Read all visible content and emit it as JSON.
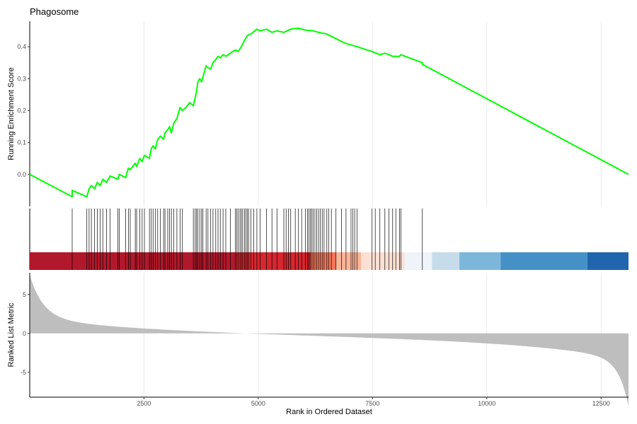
{
  "chart_data": {
    "type": "line",
    "title": "Phagosome",
    "xlabel": "Rank in Ordered Dataset",
    "xlim": [
      1,
      13100
    ],
    "x_ticks": [
      2500,
      5000,
      7500,
      10000,
      12500
    ],
    "x_tick_labels": [
      "2500",
      "5000",
      "7500",
      "10000",
      "12500"
    ],
    "grid": "vertical",
    "enrichment": {
      "ylabel": "Running Enrichment Score",
      "ylim": [
        -0.1,
        0.48
      ],
      "y_ticks": [
        0.0,
        0.1,
        0.2,
        0.3,
        0.4
      ],
      "y_tick_labels": [
        "0.0",
        "0.1",
        "0.2",
        "0.3",
        "0.4"
      ],
      "line_color": "#00ff00",
      "hit_positions": [
        930,
        1250,
        1300,
        1350,
        1420,
        1480,
        1540,
        1600,
        1680,
        1760,
        1930,
        1960,
        2100,
        2160,
        2200,
        2310,
        2340,
        2410,
        2460,
        2510,
        2620,
        2660,
        2700,
        2750,
        2800,
        2860,
        2930,
        2960,
        3020,
        3060,
        3100,
        3150,
        3220,
        3290,
        3340,
        3580,
        3620,
        3650,
        3680,
        3720,
        3760,
        3790,
        3860,
        3900,
        3960,
        4010,
        4070,
        4120,
        4170,
        4230,
        4290,
        4390,
        4500,
        4530,
        4560,
        4600,
        4630,
        4660,
        4700,
        4730,
        4760,
        4790,
        4840,
        4900,
        4970,
        5040,
        5180,
        5300,
        5410,
        5560,
        5610,
        5660,
        5710,
        5810,
        5880,
        5950,
        6030,
        6080,
        6110,
        6140,
        6170,
        6200,
        6240,
        6280,
        6320,
        6360,
        6400,
        6440,
        6500,
        6540,
        6600,
        6700,
        6820,
        6920,
        7030,
        7070,
        7110,
        7160,
        7490,
        7560,
        7660,
        7770,
        7860,
        7940,
        8010,
        8090,
        8120,
        8590
      ],
      "points": [
        [
          1,
          0.0
        ],
        [
          930,
          -0.07
        ],
        [
          930,
          -0.05
        ],
        [
          1250,
          -0.07
        ],
        [
          1300,
          -0.045
        ],
        [
          1350,
          -0.035
        ],
        [
          1420,
          -0.045
        ],
        [
          1480,
          -0.025
        ],
        [
          1540,
          -0.035
        ],
        [
          1600,
          -0.015
        ],
        [
          1680,
          -0.025
        ],
        [
          1760,
          -0.005
        ],
        [
          1930,
          -0.015
        ],
        [
          1960,
          0.0
        ],
        [
          2100,
          -0.01
        ],
        [
          2160,
          0.02
        ],
        [
          2200,
          0.015
        ],
        [
          2310,
          0.035
        ],
        [
          2340,
          0.025
        ],
        [
          2410,
          0.05
        ],
        [
          2460,
          0.04
        ],
        [
          2510,
          0.06
        ],
        [
          2620,
          0.05
        ],
        [
          2660,
          0.08
        ],
        [
          2700,
          0.09
        ],
        [
          2750,
          0.08
        ],
        [
          2800,
          0.11
        ],
        [
          2860,
          0.12
        ],
        [
          2930,
          0.11
        ],
        [
          2960,
          0.13
        ],
        [
          3020,
          0.14
        ],
        [
          3060,
          0.15
        ],
        [
          3100,
          0.13
        ],
        [
          3150,
          0.16
        ],
        [
          3220,
          0.175
        ],
        [
          3290,
          0.21
        ],
        [
          3340,
          0.2
        ],
        [
          3420,
          0.21
        ],
        [
          3500,
          0.225
        ],
        [
          3580,
          0.215
        ],
        [
          3620,
          0.24
        ],
        [
          3650,
          0.26
        ],
        [
          3680,
          0.29
        ],
        [
          3720,
          0.3
        ],
        [
          3760,
          0.29
        ],
        [
          3790,
          0.305
        ],
        [
          3860,
          0.34
        ],
        [
          3900,
          0.335
        ],
        [
          3960,
          0.33
        ],
        [
          4010,
          0.35
        ],
        [
          4070,
          0.36
        ],
        [
          4120,
          0.37
        ],
        [
          4170,
          0.365
        ],
        [
          4230,
          0.375
        ],
        [
          4290,
          0.37
        ],
        [
          4390,
          0.38
        ],
        [
          4500,
          0.39
        ],
        [
          4560,
          0.385
        ],
        [
          4630,
          0.4
        ],
        [
          4700,
          0.42
        ],
        [
          4760,
          0.435
        ],
        [
          4840,
          0.44
        ],
        [
          4970,
          0.455
        ],
        [
          5040,
          0.45
        ],
        [
          5180,
          0.455
        ],
        [
          5300,
          0.445
        ],
        [
          5410,
          0.45
        ],
        [
          5560,
          0.445
        ],
        [
          5710,
          0.455
        ],
        [
          5880,
          0.458
        ],
        [
          6030,
          0.452
        ],
        [
          6200,
          0.45
        ],
        [
          6320,
          0.445
        ],
        [
          6500,
          0.44
        ],
        [
          6700,
          0.425
        ],
        [
          6920,
          0.41
        ],
        [
          7160,
          0.4
        ],
        [
          7490,
          0.385
        ],
        [
          7660,
          0.375
        ],
        [
          7770,
          0.38
        ],
        [
          7940,
          0.37
        ],
        [
          8090,
          0.37
        ],
        [
          8120,
          0.375
        ],
        [
          8590,
          0.35
        ],
        [
          8590,
          0.345
        ],
        [
          13100,
          0.0
        ]
      ]
    },
    "heatmap_bar": {
      "segments": [
        {
          "from": 1,
          "to": 4500,
          "color": "#b2182b"
        },
        {
          "from": 4500,
          "to": 6150,
          "color": "#d6272f"
        },
        {
          "from": 6150,
          "to": 6700,
          "color": "#f4775b"
        },
        {
          "from": 6700,
          "to": 7250,
          "color": "#fcb498"
        },
        {
          "from": 7250,
          "to": 8200,
          "color": "#fde0d4"
        },
        {
          "from": 8200,
          "to": 8800,
          "color": "#eff3fa"
        },
        {
          "from": 8800,
          "to": 9400,
          "color": "#c6dcea"
        },
        {
          "from": 9400,
          "to": 10300,
          "color": "#7cb7db"
        },
        {
          "from": 10300,
          "to": 12200,
          "color": "#4591c7"
        },
        {
          "from": 12200,
          "to": 13100,
          "color": "#2166ac"
        }
      ]
    },
    "ranked_metric": {
      "ylabel": "Ranked List Metric",
      "ylim": [
        -8.2,
        7.8
      ],
      "y_ticks": [
        -5,
        0,
        5
      ],
      "y_tick_labels": [
        "-5",
        "0",
        "5"
      ],
      "fill_color": "#bebebe",
      "start_value": 7.6,
      "end_value": -8.0
    }
  }
}
